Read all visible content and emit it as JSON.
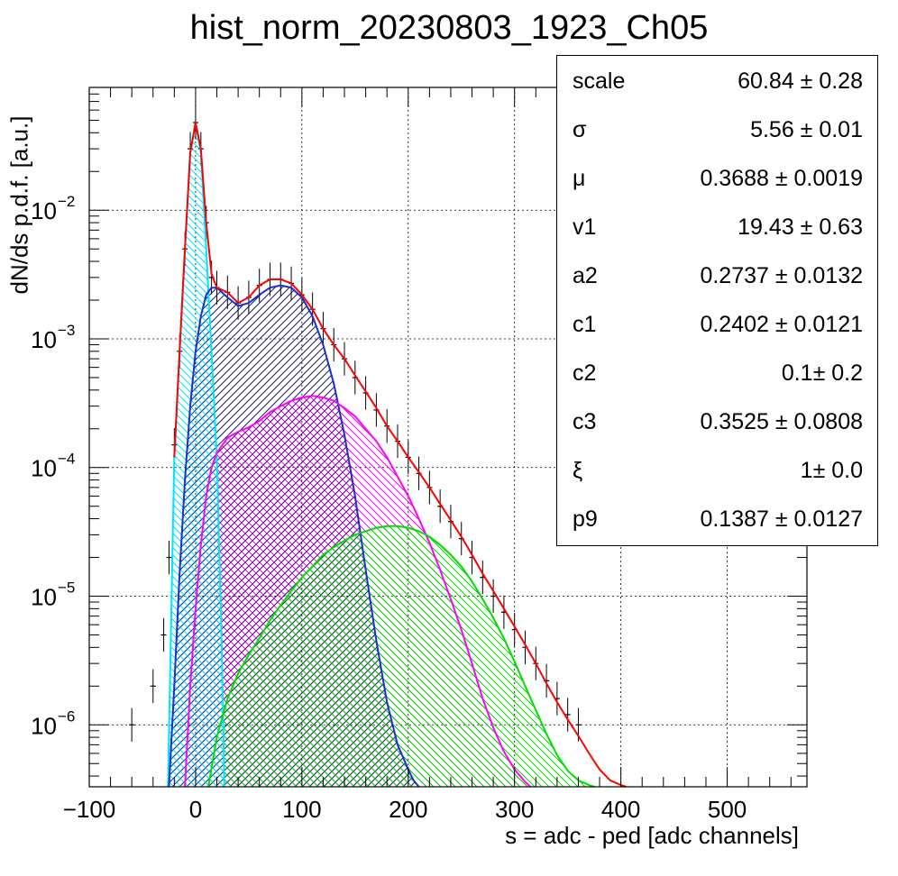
{
  "title": "hist_norm_20230803_1923_Ch05",
  "colors": {
    "data": "#000000",
    "total_fit": "#ff0000",
    "pedestal": "#00e5ff",
    "one_pe": "#1a2fd0",
    "two_pe": "#ff00ff",
    "three_pe": "#00dd00"
  },
  "stats": [
    {
      "name": "scale",
      "value": "60.84 ± 0.28"
    },
    {
      "name": "σ",
      "value": "5.56 ± 0.01"
    },
    {
      "name": "μ",
      "value": "0.3688 ± 0.0019"
    },
    {
      "name": "v1",
      "value": "19.43 ± 0.63"
    },
    {
      "name": "a2",
      "value": "0.2737 ± 0.0132"
    },
    {
      "name": "c1",
      "value": "0.2402 ± 0.0121"
    },
    {
      "name": "c2",
      "value": "0.1± 0.2"
    },
    {
      "name": "c3",
      "value": "0.3525 ± 0.0808"
    },
    {
      "name": "ξ",
      "value": "1± 0.0"
    },
    {
      "name": "p9",
      "value": "0.1387 ± 0.0127"
    }
  ],
  "chart_data": {
    "type": "line",
    "title": "hist_norm_20230803_1923_Ch05",
    "xlabel": "s = adc - ped [adc channels]",
    "ylabel": "dN/ds p.d.f. [a.u.]",
    "xlim": [
      -100,
      575
    ],
    "ylim": [
      3.3e-07,
      0.09
    ],
    "yscale": "log",
    "grid": true,
    "x_ticks": [
      -100,
      0,
      100,
      200,
      300,
      400,
      500
    ],
    "y_ticks": [
      {
        "value": 1e-06,
        "base": "10",
        "exp": "−6"
      },
      {
        "value": 1e-05,
        "base": "10",
        "exp": "−5"
      },
      {
        "value": 0.0001,
        "base": "10",
        "exp": "−4"
      },
      {
        "value": 0.001,
        "base": "10",
        "exp": "−3"
      },
      {
        "value": 0.01,
        "base": "10",
        "exp": "−2"
      }
    ],
    "histogram": {
      "x": [
        -60,
        -40,
        -30,
        -25,
        -20,
        -15,
        -10,
        -5,
        0,
        5,
        10,
        15,
        20,
        30,
        40,
        50,
        60,
        70,
        80,
        90,
        100,
        110,
        120,
        130,
        140,
        150,
        160,
        170,
        180,
        190,
        200,
        210,
        220,
        230,
        240,
        250,
        260,
        270,
        280,
        290,
        300,
        310,
        320,
        330,
        340,
        350,
        360
      ],
      "y": [
        1e-06,
        2e-06,
        5e-06,
        2e-05,
        0.00015,
        0.0008,
        0.005,
        0.03,
        0.048,
        0.03,
        0.008,
        0.003,
        0.0025,
        0.0023,
        0.0019,
        0.0021,
        0.0026,
        0.0029,
        0.0029,
        0.0027,
        0.0022,
        0.0017,
        0.0012,
        0.0009,
        0.0007,
        0.0005,
        0.00038,
        0.00028,
        0.00021,
        0.00016,
        0.00012,
        9e-05,
        7e-05,
        5e-05,
        3.8e-05,
        2.8e-05,
        2e-05,
        1.4e-05,
        1e-05,
        7.5e-06,
        5.5e-06,
        4e-06,
        3e-06,
        2.2e-06,
        1.6e-06,
        1.2e-06,
        1e-06
      ]
    },
    "series": [
      {
        "name": "",
        "role": "total_fit",
        "x": [
          -20,
          -15,
          -10,
          -5,
          0,
          5,
          10,
          15,
          20,
          30,
          40,
          50,
          60,
          70,
          80,
          90,
          100,
          110,
          120,
          130,
          140,
          150,
          160,
          170,
          180,
          190,
          200,
          210,
          220,
          230,
          240,
          250,
          260,
          270,
          280,
          290,
          300,
          310,
          320,
          330,
          340,
          350,
          360,
          370,
          380,
          390,
          400,
          405
        ],
        "y": [
          0.00012,
          0.0008,
          0.005,
          0.028,
          0.048,
          0.03,
          0.008,
          0.0032,
          0.0025,
          0.0023,
          0.0019,
          0.0021,
          0.0026,
          0.0029,
          0.0029,
          0.0027,
          0.0022,
          0.0017,
          0.0012,
          0.0009,
          0.0007,
          0.00052,
          0.00039,
          0.00029,
          0.00021,
          0.00016,
          0.00012,
          9.2e-05,
          7e-05,
          5.2e-05,
          3.9e-05,
          2.9e-05,
          2.1e-05,
          1.5e-05,
          1.1e-05,
          8e-06,
          5.8e-06,
          4.2e-06,
          3e-06,
          2.1e-06,
          1.5e-06,
          1.1e-06,
          8.2e-07,
          6e-07,
          4.5e-07,
          3.7e-07,
          3.4e-07,
          3.3e-07
        ]
      },
      {
        "name": "",
        "role": "pedestal",
        "x": [
          -26,
          -20,
          -15,
          -10,
          -5,
          0,
          5,
          10,
          15,
          20,
          25,
          27
        ],
        "y": [
          3.3e-07,
          0.00012,
          0.0008,
          0.005,
          0.028,
          0.048,
          0.028,
          0.005,
          0.0008,
          0.00012,
          3e-06,
          3.3e-07
        ]
      },
      {
        "name": "",
        "role": "one_pe",
        "x": [
          -25,
          -20,
          -15,
          -10,
          -5,
          0,
          5,
          10,
          15,
          20,
          30,
          40,
          50,
          60,
          70,
          80,
          90,
          100,
          110,
          120,
          130,
          140,
          150,
          160,
          170,
          180,
          190,
          200,
          205,
          210
        ],
        "y": [
          3.3e-07,
          2e-06,
          1.5e-05,
          8e-05,
          0.0003,
          0.0008,
          0.0015,
          0.0022,
          0.0025,
          0.0025,
          0.0021,
          0.0018,
          0.0019,
          0.0022,
          0.0025,
          0.0026,
          0.0025,
          0.0021,
          0.0015,
          0.0009,
          0.00045,
          0.00018,
          6e-05,
          1.6e-05,
          4.5e-06,
          1.5e-06,
          7e-07,
          4.5e-07,
          3.7e-07,
          3.3e-07
        ]
      },
      {
        "name": "",
        "role": "two_pe",
        "x": [
          -10,
          -5,
          0,
          5,
          10,
          15,
          20,
          30,
          40,
          50,
          60,
          70,
          80,
          90,
          100,
          110,
          120,
          130,
          140,
          150,
          160,
          170,
          180,
          190,
          200,
          210,
          220,
          230,
          240,
          250,
          260,
          270,
          280,
          290,
          300,
          310,
          315
        ],
        "y": [
          3.3e-07,
          2e-06,
          8e-06,
          2.5e-05,
          6e-05,
          0.0001,
          0.00013,
          0.00017,
          0.00019,
          0.000205,
          0.00023,
          0.00027,
          0.0003,
          0.00033,
          0.00035,
          0.00036,
          0.00035,
          0.00033,
          0.00029,
          0.00025,
          0.0002,
          0.00016,
          0.00012,
          8.5e-05,
          6e-05,
          4e-05,
          2.6e-05,
          1.6e-05,
          9.5e-06,
          5.5e-06,
          3e-06,
          1.6e-06,
          9.5e-07,
          6.2e-07,
          4.5e-07,
          3.6e-07,
          3.3e-07
        ]
      },
      {
        "name": "",
        "role": "three_pe",
        "x": [
          12,
          20,
          30,
          40,
          50,
          60,
          70,
          80,
          90,
          100,
          110,
          120,
          130,
          140,
          150,
          160,
          170,
          180,
          190,
          200,
          210,
          220,
          230,
          240,
          250,
          260,
          270,
          280,
          290,
          300,
          310,
          320,
          330,
          340,
          350,
          360,
          370,
          375
        ],
        "y": [
          3.3e-07,
          8e-07,
          1.6e-06,
          2.5e-06,
          3.5e-06,
          4.7e-06,
          6.5e-06,
          8.5e-06,
          1.1e-05,
          1.4e-05,
          1.7e-05,
          2.1e-05,
          2.4e-05,
          2.7e-05,
          3e-05,
          3.2e-05,
          3.4e-05,
          3.5e-05,
          3.5e-05,
          3.4e-05,
          3.2e-05,
          2.9e-05,
          2.5e-05,
          2.1e-05,
          1.7e-05,
          1.3e-05,
          9.5e-06,
          6.8e-06,
          4.7e-06,
          3.1e-06,
          2e-06,
          1.3e-06,
          8.5e-07,
          5.8e-07,
          4.4e-07,
          3.7e-07,
          3.4e-07,
          3.3e-07
        ]
      }
    ]
  }
}
